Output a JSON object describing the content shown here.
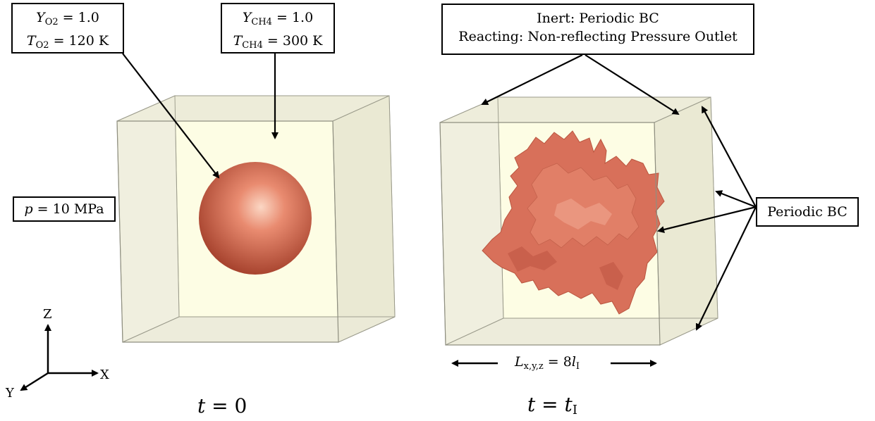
{
  "left_panel": {
    "o2_box": {
      "line1_var": "Y",
      "line1_sub": "O2",
      "line1_val": "= 1.0",
      "line2_var": "T",
      "line2_sub": "O2",
      "line2_val": "= 120 K"
    },
    "ch4_box": {
      "line1_var": "Y",
      "line1_sub": "CH4",
      "line1_val": "= 1.0",
      "line2_var": "T",
      "line2_sub": "CH4",
      "line2_val": "= 300 K"
    },
    "pressure_box": {
      "var": "p",
      "val": "= 10 MPa"
    },
    "time_label": {
      "var": "t",
      "val": "= 0"
    },
    "sphere_color": "#d9705a"
  },
  "right_panel": {
    "bc_box": {
      "line1": "Inert: Periodic BC",
      "line2": "Reacting: Non-reflecting Pressure Outlet"
    },
    "periodic_box": "Periodic BC",
    "length_label": {
      "var": "L",
      "sub": "x,y,z",
      "val": "= 8",
      "l": "l",
      "l_sub": "I"
    },
    "time_label": {
      "var": "t",
      "val": "= ",
      "var2": "t",
      "sub2": "I"
    },
    "flame_color": "#d8705a"
  },
  "axes": {
    "z": "Z",
    "x": "X",
    "y": "Y"
  },
  "colors": {
    "box_face": "#f4f2e0",
    "box_back": "#fdfde6",
    "box_edge": "#9a9a8a"
  }
}
